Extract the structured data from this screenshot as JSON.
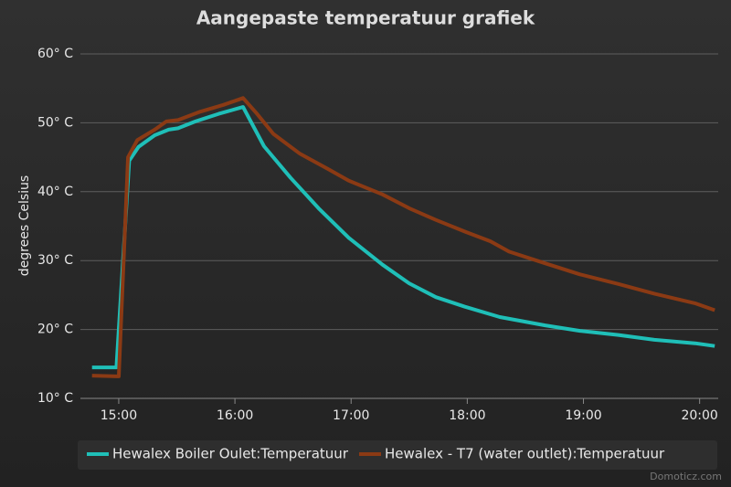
{
  "chart_data": {
    "type": "line",
    "title": "Aangepaste temperatuur grafiek",
    "y_label": "degrees Celsius",
    "credits": "Domoticz.com",
    "xlim": [
      14.67,
      20.16
    ],
    "xticks": [
      {
        "value": 15,
        "label": "15:00"
      },
      {
        "value": 16,
        "label": "16:00"
      },
      {
        "value": 17,
        "label": "17:00"
      },
      {
        "value": 18,
        "label": "18:00"
      },
      {
        "value": 19,
        "label": "19:00"
      },
      {
        "value": 20,
        "label": "20:00"
      }
    ],
    "ylim": [
      10,
      60
    ],
    "yticks": [
      {
        "value": 10,
        "label": "10° C"
      },
      {
        "value": 20,
        "label": "20° C"
      },
      {
        "value": 30,
        "label": "30° C"
      },
      {
        "value": 40,
        "label": "40° C"
      },
      {
        "value": 50,
        "label": "50° C"
      },
      {
        "value": 60,
        "label": "60° C"
      }
    ],
    "grid": true,
    "legend": "bottom",
    "series": [
      {
        "name": "Hewalex Boiler Oulet:Temperatuur",
        "color": "#1fbfb8",
        "x": [
          14.77,
          14.98,
          15.09,
          15.17,
          15.31,
          15.43,
          15.51,
          15.66,
          15.86,
          16.07,
          16.25,
          16.48,
          16.72,
          16.98,
          17.27,
          17.5,
          17.73,
          17.98,
          18.28,
          18.67,
          18.97,
          19.3,
          19.61,
          19.96,
          20.13
        ],
        "values": [
          14.5,
          14.5,
          44.5,
          46.5,
          48.2,
          49,
          49.2,
          50.2,
          51.3,
          52.3,
          46.6,
          42,
          37.6,
          33.3,
          29.4,
          26.7,
          24.7,
          23.3,
          21.8,
          20.6,
          19.8,
          19.2,
          18.5,
          18,
          17.6
        ]
      },
      {
        "name": "Hewalex - T7 (water outlet):Temperatuur",
        "color": "#8b3a14",
        "x": [
          14.77,
          15.0,
          15.08,
          15.16,
          15.31,
          15.41,
          15.51,
          15.7,
          15.9,
          16.07,
          16.19,
          16.33,
          16.56,
          16.8,
          16.98,
          17.27,
          17.5,
          17.73,
          17.98,
          18.2,
          18.36,
          18.67,
          18.97,
          19.3,
          19.61,
          19.96,
          20.13
        ],
        "values": [
          13.3,
          13.2,
          45,
          47.5,
          49,
          50.2,
          50.4,
          51.6,
          52.6,
          53.6,
          51.3,
          48.4,
          45.5,
          43.3,
          41.6,
          39.6,
          37.6,
          35.9,
          34.2,
          32.8,
          31.3,
          29.6,
          28,
          26.6,
          25.2,
          23.8,
          22.8
        ]
      }
    ]
  }
}
